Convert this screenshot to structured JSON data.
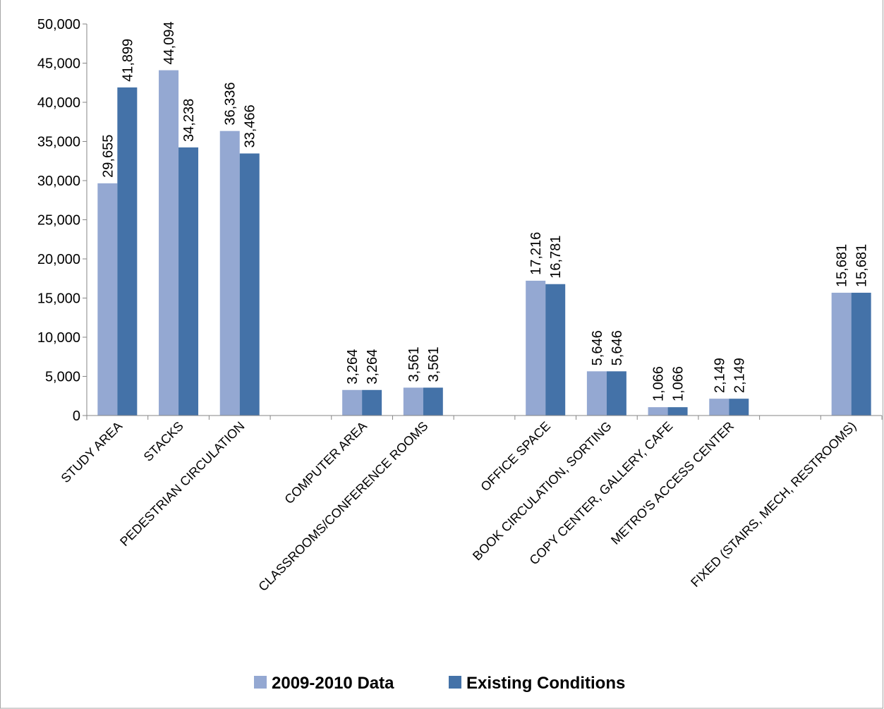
{
  "chart_data": {
    "type": "bar",
    "categories": [
      "STUDY AREA",
      "STACKS",
      "PEDESTRIAN CIRCULATION",
      "",
      "COMPUTER AREA",
      "CLASSROOMS/CONFERENCE ROOMS",
      "",
      "OFFICE SPACE",
      "BOOK CIRCULATION, SORTING",
      "COPY CENTER, GALLERY, CAFE",
      "METRO'S ACCESS CENTER",
      "",
      "FIXED (STAIRS, MECH, RESTROOMS)"
    ],
    "series": [
      {
        "name": "2009-2010 Data",
        "color": "#94a8d2",
        "values": [
          29655,
          44094,
          36336,
          null,
          3264,
          3561,
          null,
          17216,
          5646,
          1066,
          2149,
          null,
          15681
        ],
        "labels": [
          "29,655",
          "44,094",
          "36,336",
          "",
          "3,264",
          "3,561",
          "",
          "17,216",
          "5,646",
          "1,066",
          "2,149",
          "",
          "15,681"
        ]
      },
      {
        "name": "Existing Conditions",
        "color": "#4472a8",
        "values": [
          41899,
          34238,
          33466,
          null,
          3264,
          3561,
          null,
          16781,
          5646,
          1066,
          2149,
          null,
          15681
        ],
        "labels": [
          "41,899",
          "34,238",
          "33,466",
          "",
          "3,264",
          "3,561",
          "",
          "16,781",
          "5,646",
          "1,066",
          "2,149",
          "",
          "15,681"
        ]
      }
    ],
    "ylim": [
      0,
      50000
    ],
    "yticks": [
      0,
      5000,
      10000,
      15000,
      20000,
      25000,
      30000,
      35000,
      40000,
      45000,
      50000
    ],
    "ytick_labels": [
      "0",
      "5,000",
      "10,000",
      "15,000",
      "20,000",
      "25,000",
      "30,000",
      "35,000",
      "40,000",
      "45,000",
      "50,000"
    ],
    "title": "",
    "xlabel": "",
    "ylabel": "",
    "grid": false,
    "legend_position": "bottom"
  }
}
